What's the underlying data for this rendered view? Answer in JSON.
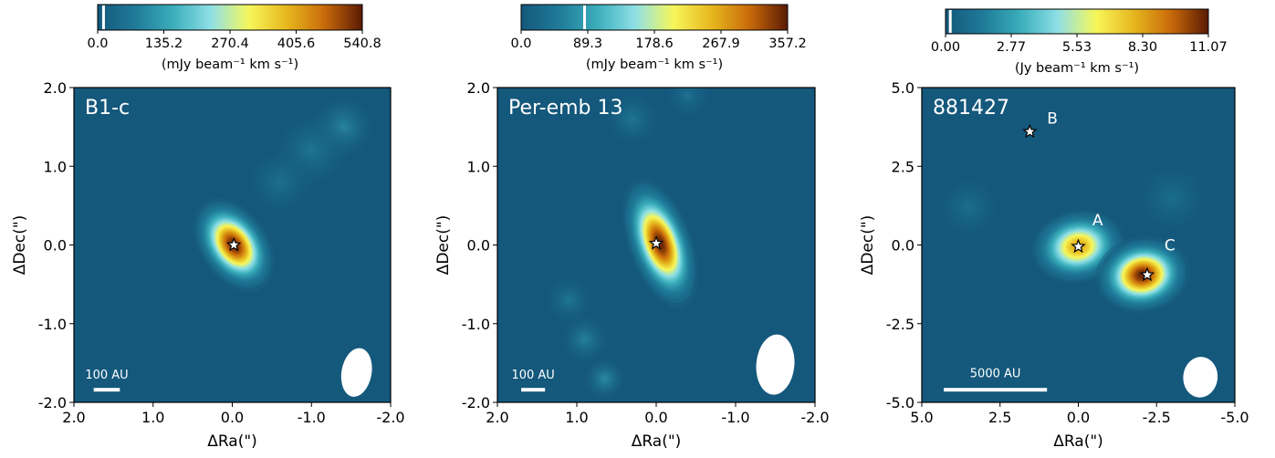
{
  "colors": {
    "background": "#14587c",
    "colormap": [
      "#14587c",
      "#1f7a98",
      "#3aaebb",
      "#8fe0e6",
      "#f7f75a",
      "#e6b81e",
      "#c96a0a",
      "#5a1a04"
    ],
    "star_fill": "#ffffff",
    "star_stroke": "#000000",
    "annotation": "#ffffff"
  },
  "chart_data": [
    {
      "type": "heatmap",
      "label": "B1-c",
      "xlabel": "ΔRa(\")",
      "ylabel": "ΔDec(\")",
      "xlim": [
        2.0,
        -2.0
      ],
      "ylim": [
        -2.0,
        2.0
      ],
      "xticks": [
        "2.0",
        "1.0",
        "0.0",
        "-1.0",
        "-2.0"
      ],
      "xtick_values": [
        2.0,
        1.0,
        0.0,
        -1.0,
        -2.0
      ],
      "yticks": [
        "-2.0",
        "-1.0",
        "0.0",
        "1.0",
        "2.0"
      ],
      "ytick_values": [
        -2.0,
        -1.0,
        0.0,
        1.0,
        2.0
      ],
      "colorbar": {
        "ticks": [
          "0.0",
          "135.2",
          "270.4",
          "405.6",
          "540.8"
        ],
        "range": [
          0,
          540.8
        ],
        "label": "(mJy beam⁻¹ km s⁻¹)",
        "marker": 12
      },
      "sources": [
        {
          "name": "",
          "x": -0.02,
          "y": 0.0,
          "peak": 540,
          "sx": 0.17,
          "sy": 0.26,
          "angle": 35
        }
      ],
      "stars": [
        {
          "x": -0.02,
          "y": 0.0,
          "label": ""
        }
      ],
      "diffuse": [
        {
          "x": -1.4,
          "y": 1.5,
          "amp": 0.14,
          "r": 0.45
        },
        {
          "x": -1.0,
          "y": 1.2,
          "amp": 0.08,
          "r": 0.55
        },
        {
          "x": -0.6,
          "y": 0.8,
          "amp": 0.06,
          "r": 0.5
        }
      ],
      "scalebar": {
        "label": "100 AU",
        "x0": 1.75,
        "x1": 1.42,
        "y": -1.84,
        "label_y": -1.7
      },
      "beam": {
        "x": -1.57,
        "y": -1.62,
        "a": 0.31,
        "b": 0.19,
        "angle": -80
      }
    },
    {
      "type": "heatmap",
      "label": "Per-emb 13",
      "xlabel": "ΔRa(\")",
      "ylabel": "ΔDec(\")",
      "xlim": [
        2.0,
        -2.0
      ],
      "ylim": [
        -2.0,
        2.0
      ],
      "xticks": [
        "2.0",
        "1.0",
        "0.0",
        "-1.0",
        "-2.0"
      ],
      "xtick_values": [
        2.0,
        1.0,
        0.0,
        -1.0,
        -2.0
      ],
      "yticks": [
        "-2.0",
        "-1.0",
        "0.0",
        "1.0",
        "2.0"
      ],
      "ytick_values": [
        -2.0,
        -1.0,
        0.0,
        1.0,
        2.0
      ],
      "colorbar": {
        "ticks": [
          "0.0",
          "89.3",
          "178.6",
          "267.9",
          "357.2"
        ],
        "range": [
          0,
          357.2
        ],
        "label": "(mJy beam⁻¹ km s⁻¹)",
        "marker": 85
      },
      "sources": [
        {
          "name": "",
          "x": -0.05,
          "y": 0.02,
          "peak": 357,
          "sx": 0.16,
          "sy": 0.34,
          "angle": 20
        }
      ],
      "stars": [
        {
          "x": 0.0,
          "y": 0.02,
          "label": ""
        }
      ],
      "diffuse": [
        {
          "x": 0.9,
          "y": -1.2,
          "amp": 0.12,
          "r": 0.35
        },
        {
          "x": 0.65,
          "y": -1.7,
          "amp": 0.16,
          "r": 0.3
        },
        {
          "x": 1.1,
          "y": -0.7,
          "amp": 0.08,
          "r": 0.35
        },
        {
          "x": 0.3,
          "y": 1.6,
          "amp": 0.08,
          "r": 0.4
        },
        {
          "x": -0.4,
          "y": 1.9,
          "amp": 0.06,
          "r": 0.35
        }
      ],
      "scalebar": {
        "label": "100 AU",
        "x0": 1.7,
        "x1": 1.4,
        "y": -1.84,
        "label_y": -1.7
      },
      "beam": {
        "x": -1.5,
        "y": -1.52,
        "a": 0.38,
        "b": 0.24,
        "angle": -85
      }
    },
    {
      "type": "heatmap",
      "label": "881427",
      "xlabel": "ΔRa(\")",
      "ylabel": "ΔDec(\")",
      "xlim": [
        5.0,
        -5.0
      ],
      "ylim": [
        -5.0,
        5.0
      ],
      "xticks": [
        "5.0",
        "2.5",
        "0.0",
        "-2.5",
        "-5.0"
      ],
      "xtick_values": [
        5.0,
        2.5,
        0.0,
        -2.5,
        -5.0
      ],
      "yticks": [
        "-5.0",
        "-2.5",
        "0.0",
        "2.5",
        "5.0"
      ],
      "ytick_values": [
        -5.0,
        -2.5,
        0.0,
        2.5,
        5.0
      ],
      "colorbar": {
        "ticks": [
          "0.00",
          "2.77",
          "5.53",
          "8.30",
          "11.07"
        ],
        "range": [
          0,
          11.07
        ],
        "label": "(Jy beam⁻¹ km s⁻¹)",
        "marker": 0.2
      },
      "sources": [
        {
          "name": "A",
          "x": 0.0,
          "y": -0.05,
          "peak": 8.4,
          "sx": 0.62,
          "sy": 0.48,
          "angle": 10
        },
        {
          "name": "C",
          "x": -2.05,
          "y": -0.95,
          "peak": 11.07,
          "sx": 0.6,
          "sy": 0.48,
          "angle": 10
        }
      ],
      "stars": [
        {
          "x": 0.0,
          "y": -0.05,
          "label": "A",
          "lx": -0.45,
          "ly": 0.62
        },
        {
          "x": -2.2,
          "y": -0.95,
          "label": "C",
          "lx": -2.75,
          "ly": -0.18
        },
        {
          "x": 1.55,
          "y": 3.6,
          "label": "B",
          "lx": 1.0,
          "ly": 3.85
        }
      ],
      "diffuse": [
        {
          "x": 3.5,
          "y": 1.2,
          "amp": 0.05,
          "r": 1.2
        },
        {
          "x": -3.0,
          "y": 1.5,
          "amp": 0.04,
          "r": 1.4
        }
      ],
      "scalebar": {
        "label": "5000 AU",
        "x0": 4.3,
        "x1": 1.0,
        "y": -4.6,
        "label_y": -4.2
      },
      "beam": {
        "x": -3.9,
        "y": -4.2,
        "a": 0.65,
        "b": 0.55,
        "angle": -85
      }
    }
  ]
}
